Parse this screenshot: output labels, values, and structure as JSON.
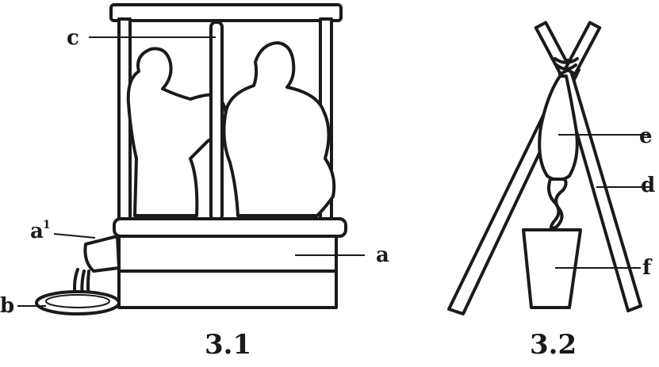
{
  "figure_left": {
    "caption": "3.1",
    "labels": {
      "a": "a",
      "a1": "a",
      "a1_sup": "1",
      "b": "b",
      "c": "c"
    }
  },
  "figure_right": {
    "caption": "3.2",
    "labels": {
      "d": "d",
      "e": "e",
      "f": "f"
    }
  },
  "colors": {
    "ink": "#1a1a1a",
    "paper": "#ffffff"
  }
}
